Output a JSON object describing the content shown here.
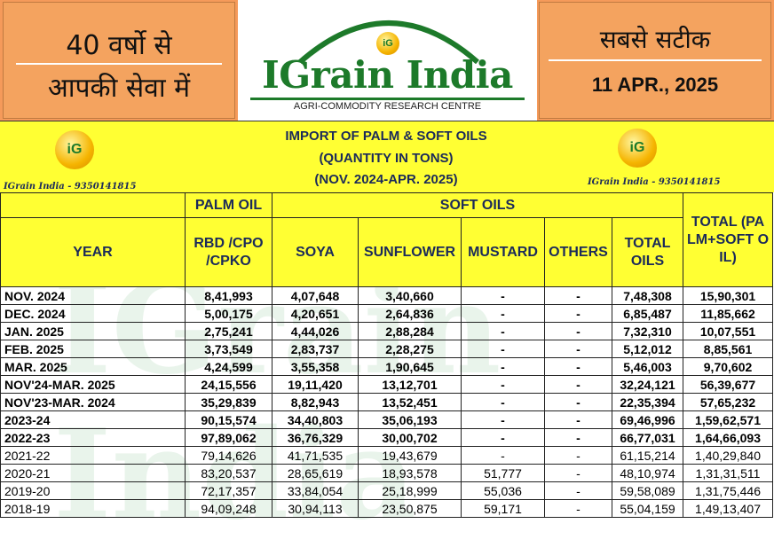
{
  "header": {
    "left_line1": "40 वर्षो से",
    "left_line2": "आपकी सेवा में",
    "logo_text": "IGrain India",
    "logo_coin": "iG",
    "logo_sub": "AGRI-COMMODITY RESEARCH CENTRE",
    "right_line1": "सबसे सटीक",
    "date": "11 APR., 2025"
  },
  "band": {
    "title1": "IMPORT OF PALM & SOFT OILS",
    "title2": "(QUANTITY IN TONS)",
    "title3": "(NOV. 2024-APR. 2025)",
    "left_caption": "IGrain India - 9350141815",
    "right_caption": "IGrain India - 9350141815",
    "coin": "iG"
  },
  "watermark": "IGrain India",
  "table": {
    "group_palm": "PALM OIL",
    "group_soft": "SOFT OILS",
    "col_year": "YEAR",
    "col_palm": "RBD /CPO /CPKO",
    "col_soya": "SOYA",
    "col_sunflower": "SUNFLOWER",
    "col_mustard": "MUSTARD",
    "col_others": "OTHERS",
    "col_total_oils": "TOTAL OILS",
    "col_total": "TOTAL (PALM+SOFT OIL)",
    "rows": [
      {
        "year": "NOV. 2024",
        "palm": "8,41,993",
        "soya": "4,07,648",
        "sunflower": "3,40,660",
        "mustard": "-",
        "others": "-",
        "total_oils": "7,48,308",
        "total": "15,90,301"
      },
      {
        "year": "DEC. 2024",
        "palm": "5,00,175",
        "soya": "4,20,651",
        "sunflower": "2,64,836",
        "mustard": "-",
        "others": "-",
        "total_oils": "6,85,487",
        "total": "11,85,662"
      },
      {
        "year": "JAN. 2025",
        "palm": "2,75,241",
        "soya": "4,44,026",
        "sunflower": "2,88,284",
        "mustard": "-",
        "others": "-",
        "total_oils": "7,32,310",
        "total": "10,07,551"
      },
      {
        "year": "FEB. 2025",
        "palm": "3,73,549",
        "soya": "2,83,737",
        "sunflower": "2,28,275",
        "mustard": "-",
        "others": "-",
        "total_oils": "5,12,012",
        "total": "8,85,561"
      },
      {
        "year": "MAR. 2025",
        "palm": "4,24,599",
        "soya": "3,55,358",
        "sunflower": "1,90,645",
        "mustard": "-",
        "others": "-",
        "total_oils": "5,46,003",
        "total": "9,70,602"
      },
      {
        "year": "NOV'24-MAR. 2025",
        "palm": "24,15,556",
        "soya": "19,11,420",
        "sunflower": "13,12,701",
        "mustard": "-",
        "others": "-",
        "total_oils": "32,24,121",
        "total": "56,39,677"
      },
      {
        "year": "NOV'23-MAR. 2024",
        "palm": "35,29,839",
        "soya": "8,82,943",
        "sunflower": "13,52,451",
        "mustard": "-",
        "others": "-",
        "total_oils": "22,35,394",
        "total": "57,65,232"
      },
      {
        "year": "2023-24",
        "palm": "90,15,574",
        "soya": "34,40,803",
        "sunflower": "35,06,193",
        "mustard": "-",
        "others": "-",
        "total_oils": "69,46,996",
        "total": "1,59,62,571"
      },
      {
        "year": "2022-23",
        "palm": "97,89,062",
        "soya": "36,76,329",
        "sunflower": "30,00,702",
        "mustard": "-",
        "others": "-",
        "total_oils": "66,77,031",
        "total": "1,64,66,093"
      },
      {
        "year": "2021-22",
        "palm": "79,14,626",
        "soya": "41,71,535",
        "sunflower": "19,43,679",
        "mustard": "-",
        "others": "-",
        "total_oils": "61,15,214",
        "total": "1,40,29,840"
      },
      {
        "year": "2020-21",
        "palm": "83,20,537",
        "soya": "28,65,619",
        "sunflower": "18,93,578",
        "mustard": "51,777",
        "others": "-",
        "total_oils": "48,10,974",
        "total": "1,31,31,511"
      },
      {
        "year": "2019-20",
        "palm": "72,17,357",
        "soya": "33,84,054",
        "sunflower": "25,18,999",
        "mustard": "55,036",
        "others": "-",
        "total_oils": "59,58,089",
        "total": "1,31,75,446"
      },
      {
        "year": "2018-19",
        "palm": "94,09,248",
        "soya": "30,94,113",
        "sunflower": "23,50,875",
        "mustard": "59,171",
        "others": "-",
        "total_oils": "55,04,159",
        "total": "1,49,13,407"
      }
    ]
  }
}
